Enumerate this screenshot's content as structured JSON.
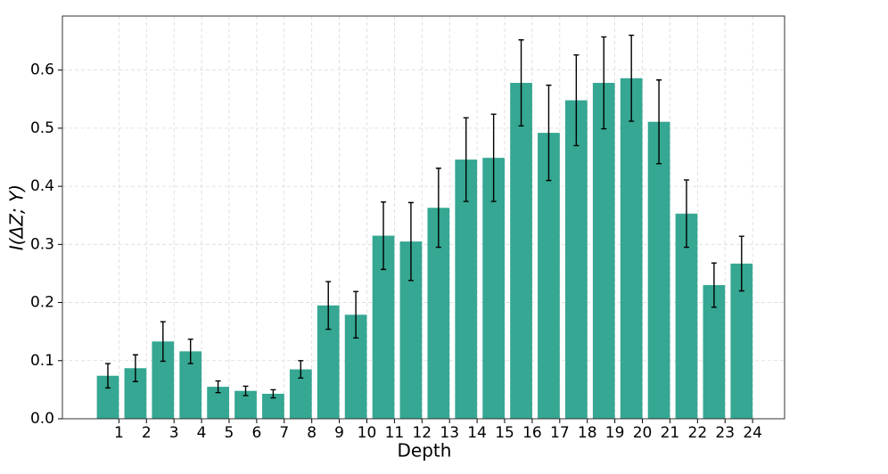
{
  "chart_data": {
    "type": "bar",
    "x_label": "Depth",
    "y_label": "I(ΔZ; Y)",
    "x": [
      0,
      1,
      2,
      3,
      4,
      5,
      6,
      7,
      8,
      9,
      10,
      11,
      12,
      13,
      14,
      15,
      16,
      17,
      18,
      19,
      20,
      21,
      22,
      23
    ],
    "values": [
      0.074,
      0.087,
      0.133,
      0.116,
      0.055,
      0.048,
      0.043,
      0.085,
      0.195,
      0.179,
      0.315,
      0.305,
      0.363,
      0.446,
      0.449,
      0.578,
      0.492,
      0.548,
      0.578,
      0.586,
      0.511,
      0.353,
      0.23,
      0.267
    ],
    "errors": [
      0.021,
      0.023,
      0.034,
      0.021,
      0.01,
      0.008,
      0.007,
      0.015,
      0.041,
      0.04,
      0.058,
      0.067,
      0.068,
      0.072,
      0.075,
      0.074,
      0.082,
      0.078,
      0.079,
      0.074,
      0.072,
      0.058,
      0.038,
      0.047
    ],
    "color": "#35a792",
    "xlim": [
      -1.65,
      24.56
    ],
    "ylim": [
      0,
      0.693
    ],
    "xticks": [
      {
        "value": 0.4,
        "label": "1"
      },
      {
        "value": 1.4,
        "label": "2"
      },
      {
        "value": 2.4,
        "label": "3"
      },
      {
        "value": 3.4,
        "label": "4"
      },
      {
        "value": 4.4,
        "label": "5"
      },
      {
        "value": 5.4,
        "label": "6"
      },
      {
        "value": 6.4,
        "label": "7"
      },
      {
        "value": 7.4,
        "label": "8"
      },
      {
        "value": 8.4,
        "label": "9"
      },
      {
        "value": 9.4,
        "label": "10"
      },
      {
        "value": 10.4,
        "label": "11"
      },
      {
        "value": 11.4,
        "label": "12"
      },
      {
        "value": 12.4,
        "label": "13"
      },
      {
        "value": 13.4,
        "label": "14"
      },
      {
        "value": 14.4,
        "label": "15"
      },
      {
        "value": 15.4,
        "label": "16"
      },
      {
        "value": 16.4,
        "label": "17"
      },
      {
        "value": 17.4,
        "label": "18"
      },
      {
        "value": 18.4,
        "label": "19"
      },
      {
        "value": 19.4,
        "label": "20"
      },
      {
        "value": 20.4,
        "label": "21"
      },
      {
        "value": 21.4,
        "label": "22"
      },
      {
        "value": 22.4,
        "label": "23"
      },
      {
        "value": 23.4,
        "label": "24"
      }
    ],
    "yticks": [
      {
        "value": 0,
        "label": "0.0"
      },
      {
        "value": 0.1,
        "label": "0.1"
      },
      {
        "value": 0.2,
        "label": "0.2"
      },
      {
        "value": 0.3,
        "label": "0.3"
      },
      {
        "value": 0.4,
        "label": "0.4"
      },
      {
        "value": 0.5,
        "label": "0.5"
      },
      {
        "value": 0.6,
        "label": "0.6"
      }
    ],
    "grid": true
  }
}
